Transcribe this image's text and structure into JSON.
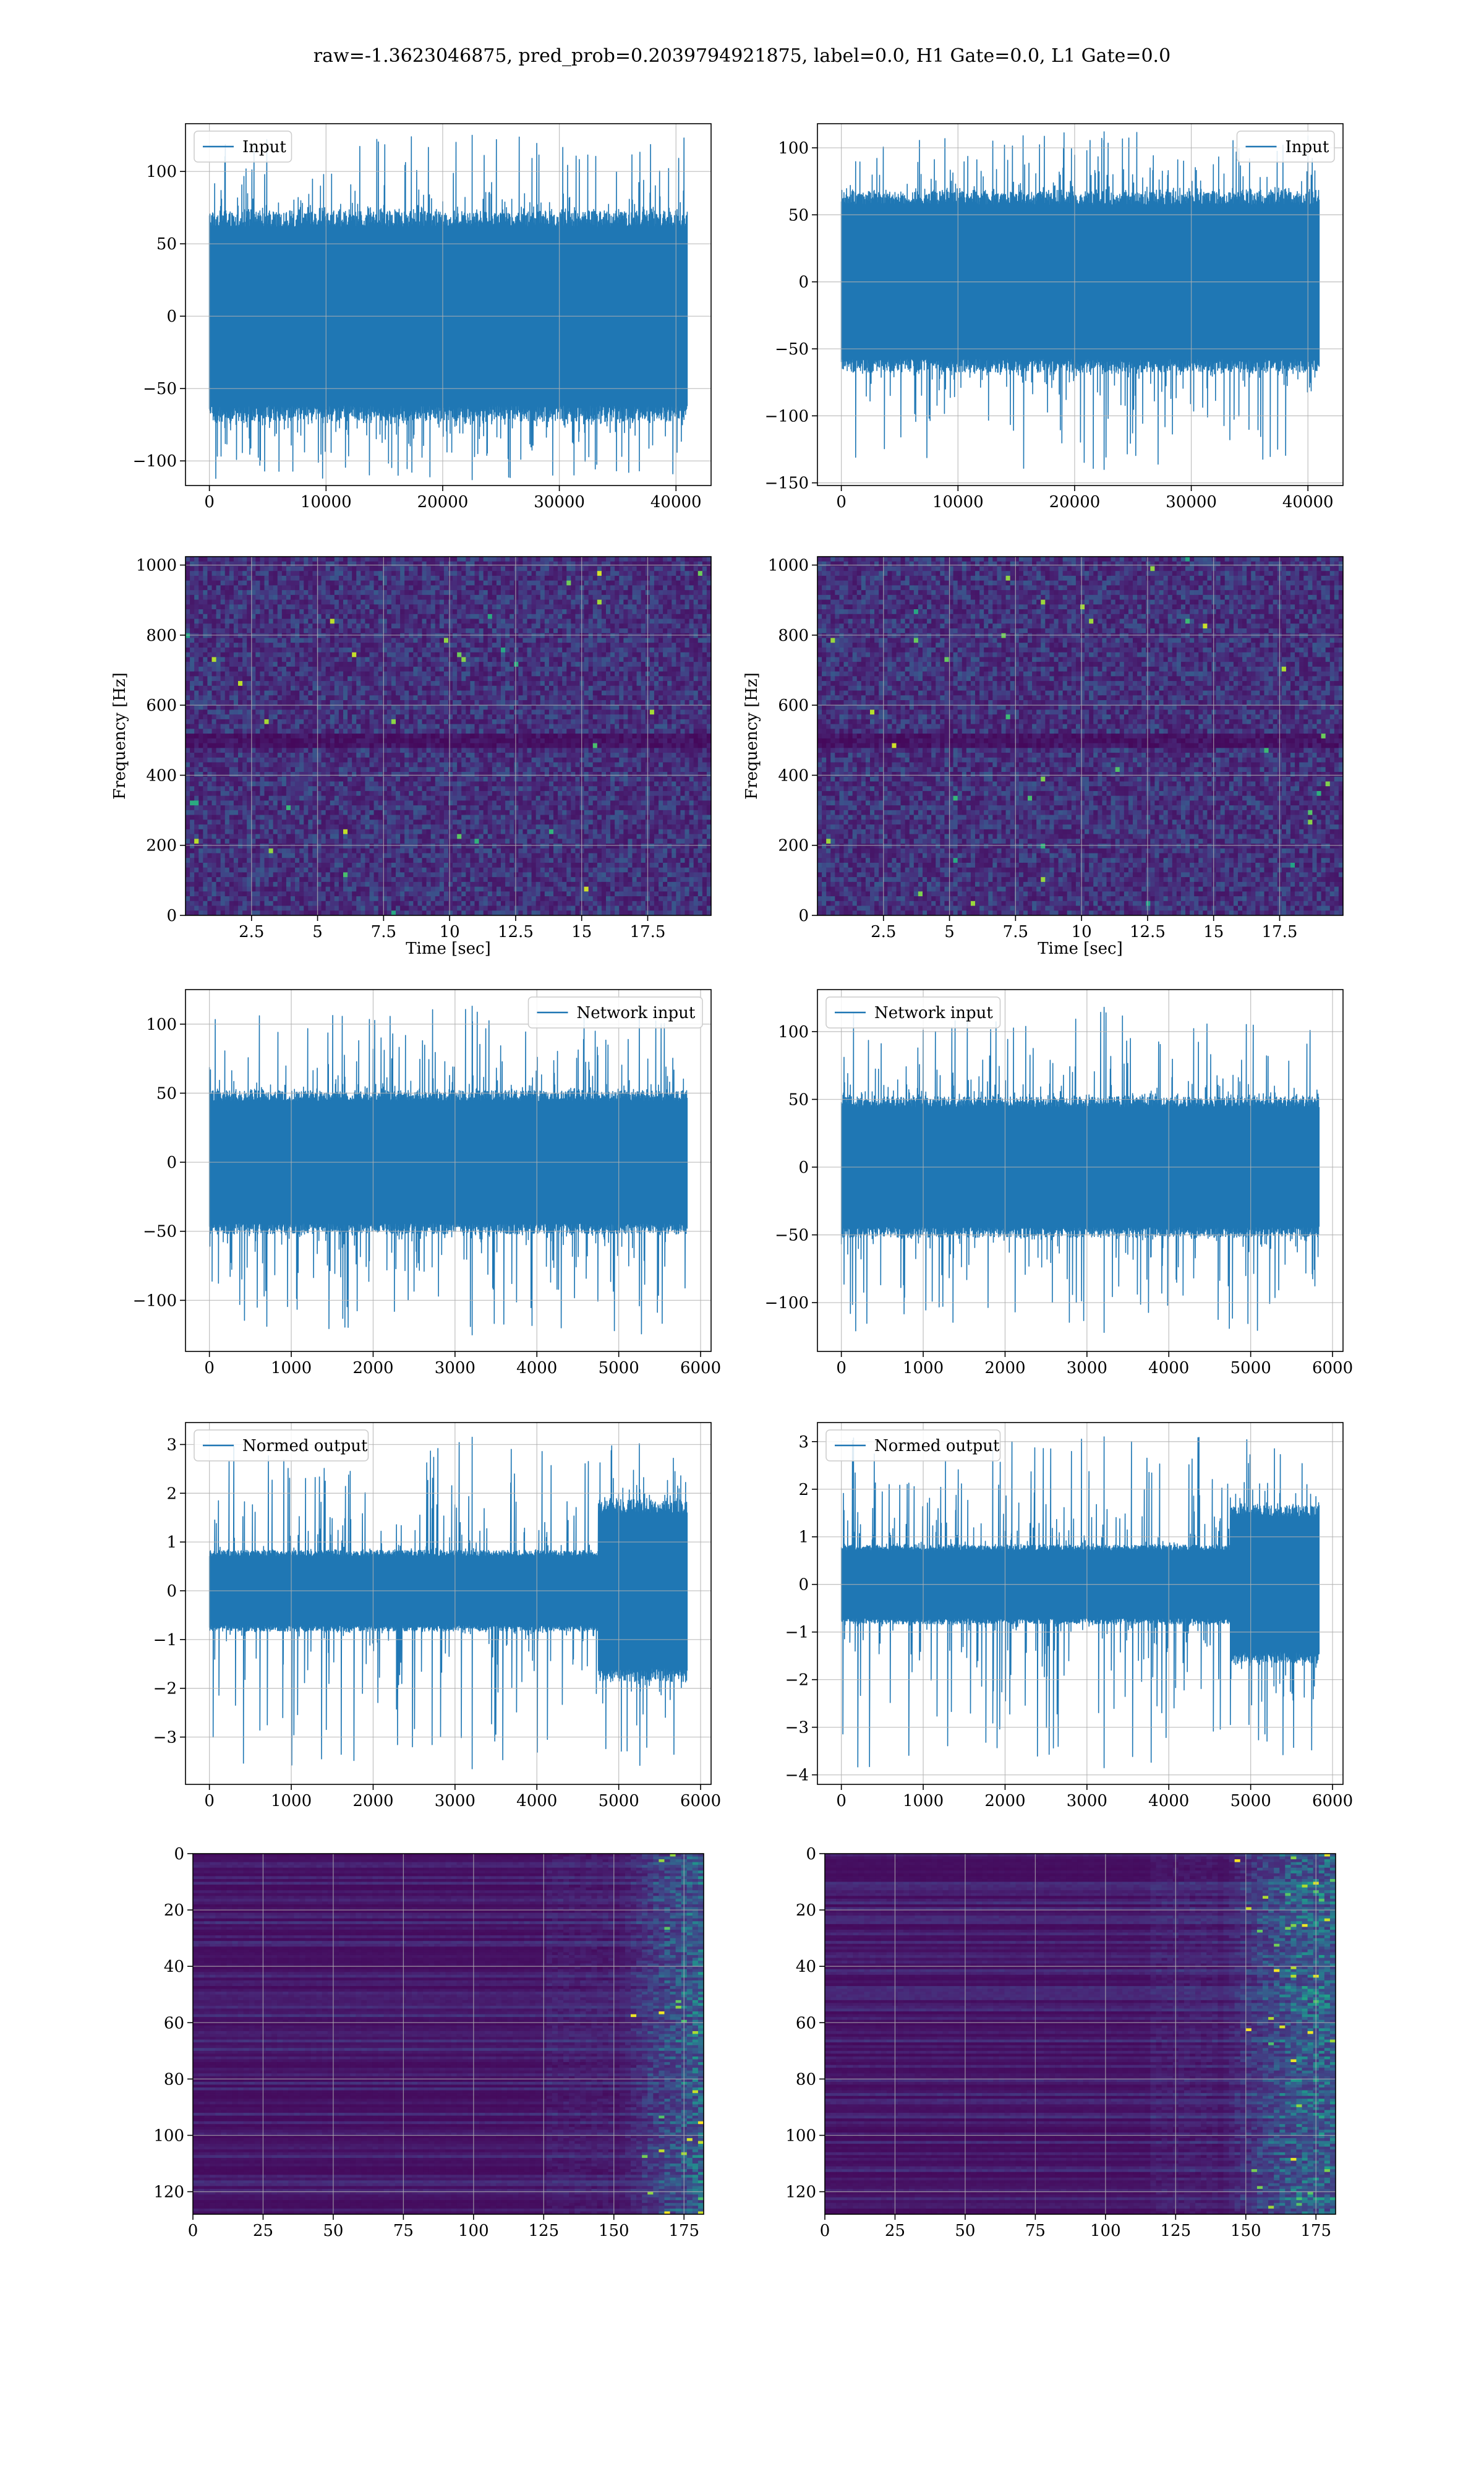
{
  "figure": {
    "suptitle": "raw=-1.3623046875, pred_prob=0.2039794921875, label=0.0, H1 Gate=0.0, L1 Gate=0.0"
  },
  "colors": {
    "line": "#1f77b4",
    "viridis_dark": "#440154",
    "viridis_mid": "#21918c",
    "viridis_light": "#fde725",
    "grid": "#b0b0b0"
  },
  "chart_data": [
    {
      "id": "input_left",
      "type": "line",
      "title": "",
      "xlabel": "",
      "ylabel": "",
      "legend": {
        "labels": [
          "Input"
        ],
        "position": "upper left"
      },
      "series": [
        {
          "name": "Input",
          "n": 40960,
          "envelope_p99": 70,
          "spike_max": 125,
          "spike_min": -113
        }
      ],
      "xlim": [
        -2048,
        43008
      ],
      "ylim": [
        -117,
        133
      ],
      "xticks": [
        0,
        10000,
        20000,
        30000,
        40000
      ],
      "yticks": [
        -100,
        -50,
        0,
        50,
        100
      ],
      "grid": true
    },
    {
      "id": "input_right",
      "type": "line",
      "title": "",
      "xlabel": "",
      "ylabel": "",
      "legend": {
        "labels": [
          "Input"
        ],
        "position": "upper right"
      },
      "series": [
        {
          "name": "Input",
          "n": 40960,
          "envelope_p99": 65,
          "spike_max": 112,
          "spike_min": -140
        }
      ],
      "xlim": [
        -2048,
        43008
      ],
      "ylim": [
        -152,
        118
      ],
      "xticks": [
        0,
        10000,
        20000,
        30000,
        40000
      ],
      "yticks": [
        -150,
        -100,
        -50,
        0,
        50,
        100
      ],
      "grid": true
    },
    {
      "id": "spec_left",
      "type": "heatmap",
      "title": "",
      "xlabel": "Time [sec]",
      "ylabel": "Frequency [Hz]",
      "colormap": "viridis",
      "xlim": [
        0,
        19.9
      ],
      "ylim": [
        0,
        1024
      ],
      "xticks": [
        2.5,
        5.0,
        7.5,
        10.0,
        12.5,
        15.0,
        17.5
      ],
      "yticks": [
        0,
        200,
        400,
        600,
        800,
        1000
      ],
      "notes": "broadband noise with a dark band near 480-520 Hz",
      "grid": true
    },
    {
      "id": "spec_right",
      "type": "heatmap",
      "title": "",
      "xlabel": "Time [sec]",
      "ylabel": "Frequency [Hz]",
      "colormap": "viridis",
      "xlim": [
        0,
        19.9
      ],
      "ylim": [
        0,
        1024
      ],
      "xticks": [
        2.5,
        5.0,
        7.5,
        10.0,
        12.5,
        15.0,
        17.5
      ],
      "yticks": [
        0,
        200,
        400,
        600,
        800,
        1000
      ],
      "notes": "broadband noise with a dark band near 480-520 Hz",
      "grid": true
    },
    {
      "id": "net_left",
      "type": "line",
      "title": "",
      "xlabel": "",
      "ylabel": "",
      "legend": {
        "labels": [
          "Network input"
        ],
        "position": "upper right"
      },
      "series": [
        {
          "name": "Network input",
          "n": 5836,
          "envelope_p99": 50,
          "spike_max": 113,
          "spike_min": -125
        }
      ],
      "xlim": [
        -292,
        6128
      ],
      "ylim": [
        -137,
        125
      ],
      "xticks": [
        0,
        1000,
        2000,
        3000,
        4000,
        5000,
        6000
      ],
      "yticks": [
        -100,
        -50,
        0,
        50,
        100
      ],
      "grid": true
    },
    {
      "id": "net_right",
      "type": "line",
      "title": "",
      "xlabel": "",
      "ylabel": "",
      "legend": {
        "labels": [
          "Network input"
        ],
        "position": "upper left"
      },
      "series": [
        {
          "name": "Network input",
          "n": 5836,
          "envelope_p99": 50,
          "spike_max": 118,
          "spike_min": -122
        }
      ],
      "xlim": [
        -292,
        6128
      ],
      "ylim": [
        -136,
        131
      ],
      "xticks": [
        0,
        1000,
        2000,
        3000,
        4000,
        5000,
        6000
      ],
      "yticks": [
        -100,
        -50,
        0,
        50,
        100
      ],
      "grid": true
    },
    {
      "id": "norm_left",
      "type": "line",
      "title": "",
      "xlabel": "",
      "ylabel": "",
      "legend": {
        "labels": [
          "Normed output"
        ],
        "position": "upper left"
      },
      "series": [
        {
          "name": "Normed output",
          "n": 5836,
          "envelope_p99": 0.8,
          "late_envelope_p99": 1.8,
          "transition_x": 4750,
          "spike_max": 3.15,
          "spike_min": -3.65
        }
      ],
      "xlim": [
        -292,
        6128
      ],
      "ylim": [
        -3.97,
        3.45
      ],
      "xticks": [
        0,
        1000,
        2000,
        3000,
        4000,
        5000,
        6000
      ],
      "yticks": [
        -3,
        -2,
        -1,
        0,
        1,
        2,
        3
      ],
      "grid": true
    },
    {
      "id": "norm_right",
      "type": "line",
      "title": "",
      "xlabel": "",
      "ylabel": "",
      "legend": {
        "labels": [
          "Normed output"
        ],
        "position": "upper left"
      },
      "series": [
        {
          "name": "Normed output",
          "n": 5836,
          "envelope_p99": 0.8,
          "late_envelope_p99": 1.6,
          "transition_x": 4750,
          "spike_max": 3.1,
          "spike_min": -3.85
        }
      ],
      "xlim": [
        -292,
        6128
      ],
      "ylim": [
        -4.2,
        3.4
      ],
      "xticks": [
        0,
        1000,
        2000,
        3000,
        4000,
        5000,
        6000
      ],
      "yticks": [
        -4,
        -3,
        -2,
        -1,
        0,
        1,
        2,
        3
      ],
      "grid": true
    },
    {
      "id": "feat_left",
      "type": "heatmap",
      "title": "",
      "xlabel": "",
      "ylabel": "",
      "colormap": "viridis",
      "rows": 128,
      "cols": 182,
      "xlim": [
        0,
        182
      ],
      "ylim": [
        128,
        0
      ],
      "xticks": [
        0,
        25,
        50,
        75,
        100,
        125,
        150,
        175
      ],
      "yticks": [
        0,
        20,
        40,
        60,
        80,
        100,
        120
      ],
      "notes": "activations brighten strongly after column ~150",
      "grid": true
    },
    {
      "id": "feat_right",
      "type": "heatmap",
      "title": "",
      "xlabel": "",
      "ylabel": "",
      "colormap": "viridis",
      "rows": 128,
      "cols": 182,
      "xlim": [
        0,
        182
      ],
      "ylim": [
        128,
        0
      ],
      "xticks": [
        0,
        25,
        50,
        75,
        100,
        125,
        150,
        175
      ],
      "yticks": [
        0,
        20,
        40,
        60,
        80,
        100,
        120
      ],
      "notes": "activations brighten strongly after column ~140",
      "grid": true
    }
  ]
}
